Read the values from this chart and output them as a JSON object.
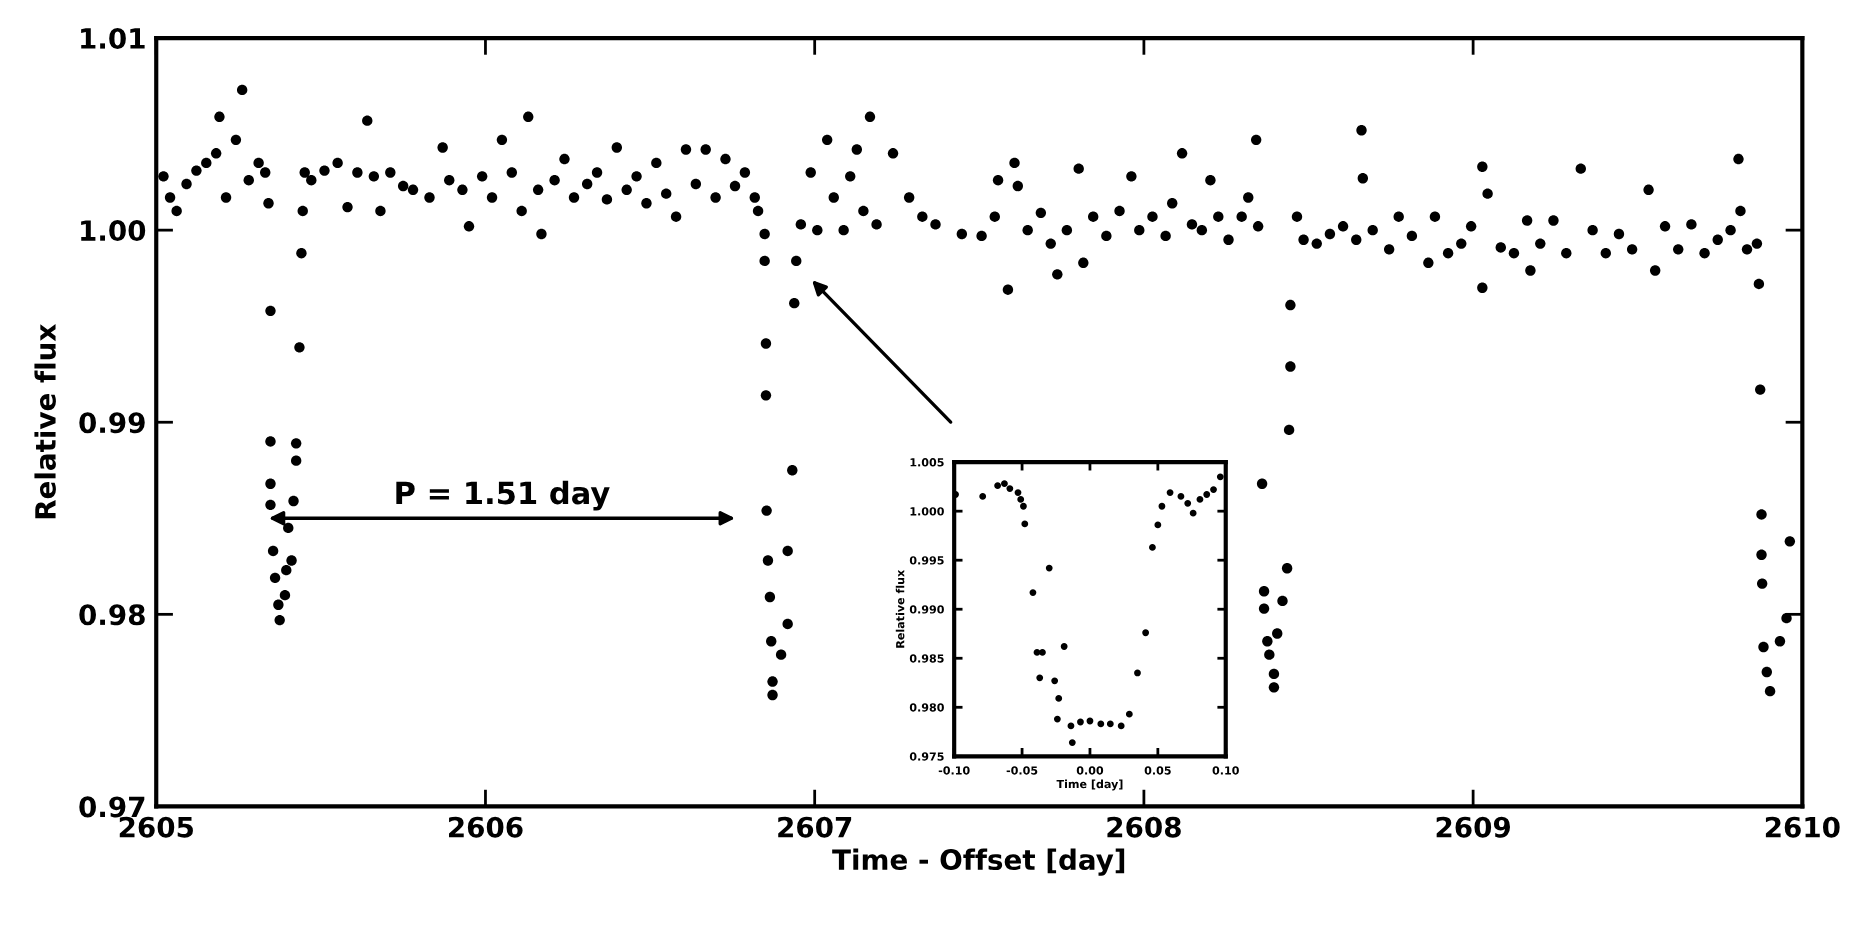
{
  "chart_data": [
    {
      "type": "scatter",
      "xlabel": "Time - Offset [day]",
      "ylabel": "Relative flux",
      "marker": "circle",
      "grid": false,
      "legend": false,
      "xlim": [
        2605,
        2610
      ],
      "ylim": [
        0.97,
        1.01
      ],
      "xticks": [
        2605,
        2606,
        2607,
        2608,
        2609,
        2610
      ],
      "yticks": [
        {
          "value": 0.97,
          "label": "0.97"
        },
        {
          "value": 0.98,
          "label": "0.98"
        },
        {
          "value": 0.99,
          "label": "0.99"
        },
        {
          "value": 1.0,
          "label": "1.00"
        },
        {
          "value": 1.01,
          "label": "1.01"
        }
      ],
      "annotations": [
        "P = 1.51 day"
      ],
      "series": [
        {
          "color": "#000000",
          "x": [
            2605.022,
            2605.042,
            2605.062,
            2605.092,
            2605.122,
            2605.152,
            2605.182,
            2605.192,
            2605.212,
            2605.242,
            2605.261,
            2605.281,
            2605.311,
            2605.331,
            2605.341,
            2605.347,
            2605.347,
            2605.347,
            2605.347,
            2605.355,
            2605.361,
            2605.371,
            2605.375,
            2605.391,
            2605.395,
            2605.411,
            2605.401,
            2605.417,
            2605.425,
            2605.425,
            2605.435,
            2605.441,
            2605.445,
            2605.451,
            2605.471,
            2605.511,
            2605.551,
            2605.581,
            2605.611,
            2605.641,
            2605.661,
            2605.681,
            2605.711,
            2605.75,
            2605.78,
            2605.83,
            2605.87,
            2605.89,
            2605.93,
            2605.95,
            2605.99,
            2606.02,
            2606.05,
            2606.08,
            2606.11,
            2606.13,
            2606.16,
            2606.17,
            2606.21,
            2606.24,
            2606.269,
            2606.309,
            2606.339,
            2606.369,
            2606.399,
            2606.429,
            2606.459,
            2606.489,
            2606.519,
            2606.549,
            2606.579,
            2606.609,
            2606.639,
            2606.669,
            2606.699,
            2606.729,
            2606.758,
            2606.788,
            2606.818,
            2606.828,
            2606.848,
            2606.848,
            2606.852,
            2606.852,
            2606.854,
            2606.858,
            2606.864,
            2606.868,
            2606.872,
            2606.872,
            2606.898,
            2606.918,
            2606.918,
            2606.932,
            2606.938,
            2606.944,
            2606.958,
            2606.988,
            2607.008,
            2607.038,
            2607.058,
            2607.088,
            2607.108,
            2607.128,
            2607.148,
            2607.168,
            2607.188,
            2607.238,
            2607.287,
            2607.327,
            2607.367,
            2607.447,
            2607.507,
            2607.547,
            2607.557,
            2607.587,
            2607.607,
            2607.617,
            2607.647,
            2607.687,
            2607.717,
            2607.737,
            2607.766,
            2607.802,
            2607.816,
            2607.846,
            2607.886,
            2607.926,
            2607.962,
            2607.986,
            2608.026,
            2608.066,
            2608.086,
            2608.116,
            2608.146,
            2608.176,
            2608.202,
            2608.226,
            2608.257,
            2608.297,
            2608.317,
            2608.341,
            2608.347,
            2608.359,
            2608.365,
            2608.365,
            2608.375,
            2608.381,
            2608.395,
            2608.395,
            2608.405,
            2608.421,
            2608.435,
            2608.441,
            2608.445,
            2608.445,
            2608.465,
            2608.485,
            2608.525,
            2608.565,
            2608.605,
            2608.645,
            2608.661,
            2608.665,
            2608.695,
            2608.745,
            2608.774,
            2608.814,
            2608.864,
            2608.884,
            2608.924,
            2608.964,
            2608.994,
            2609.028,
            2609.028,
            2609.044,
            2609.084,
            2609.124,
            2609.164,
            2609.174,
            2609.204,
            2609.244,
            2609.283,
            2609.327,
            2609.363,
            2609.403,
            2609.443,
            2609.483,
            2609.533,
            2609.553,
            2609.583,
            2609.623,
            2609.663,
            2609.703,
            2609.743,
            2609.782,
            2609.806,
            2609.812,
            2609.832,
            2609.862,
            2609.868,
            2609.872,
            2609.876,
            2609.876,
            2609.878,
            2609.882,
            2609.892,
            2609.902,
            2609.932,
            2609.952,
            2609.962
          ],
          "values": [
            1.0028,
            1.0017,
            1.001,
            1.0024,
            1.0031,
            1.0035,
            1.004,
            1.0059,
            1.0017,
            1.0047,
            1.0073,
            1.0026,
            1.0035,
            1.003,
            1.0014,
            0.9958,
            0.989,
            0.9868,
            0.9857,
            0.9833,
            0.9819,
            0.9805,
            0.9797,
            0.981,
            0.9823,
            0.9828,
            0.9845,
            0.9859,
            0.988,
            0.9889,
            0.9939,
            0.9988,
            1.001,
            1.003,
            1.0026,
            1.0031,
            1.0035,
            1.0012,
            1.003,
            1.0057,
            1.0028,
            1.001,
            1.003,
            1.0023,
            1.0021,
            1.0017,
            1.0043,
            1.0026,
            1.0021,
            1.0002,
            1.0028,
            1.0017,
            1.0047,
            1.003,
            1.001,
            1.0059,
            1.0021,
            0.9998,
            1.0026,
            1.0037,
            1.0017,
            1.0024,
            1.003,
            1.0016,
            1.0043,
            1.0021,
            1.0028,
            1.0014,
            1.0035,
            1.0019,
            1.0007,
            1.0042,
            1.0024,
            1.0042,
            1.0017,
            1.0037,
            1.0023,
            1.003,
            1.0017,
            1.001,
            0.9998,
            0.9984,
            0.9941,
            0.9914,
            0.9854,
            0.9828,
            0.9809,
            0.9786,
            0.9765,
            0.9758,
            0.9779,
            0.9795,
            0.9833,
            0.9875,
            0.9962,
            0.9984,
            1.0003,
            1.003,
            1.0,
            1.0047,
            1.0017,
            1.0,
            1.0028,
            1.0042,
            1.001,
            1.0059,
            1.0003,
            1.004,
            1.0017,
            1.0007,
            1.0003,
            0.9998,
            0.9997,
            1.0007,
            1.0026,
            0.9969,
            1.0035,
            1.0023,
            1.0,
            1.0009,
            0.9993,
            0.9977,
            1.0,
            1.0032,
            0.9983,
            1.0007,
            0.9997,
            1.001,
            1.0028,
            1.0,
            1.0007,
            0.9997,
            1.0014,
            1.004,
            1.0003,
            1.0,
            1.0026,
            1.0007,
            0.9995,
            1.0007,
            1.0017,
            1.0047,
            1.0002,
            0.9868,
            0.9812,
            0.9803,
            0.9786,
            0.9779,
            0.9769,
            0.9762,
            0.979,
            0.9807,
            0.9824,
            0.9896,
            0.9929,
            0.9961,
            1.0007,
            0.9995,
            0.9993,
            0.9998,
            1.0002,
            0.9995,
            1.0052,
            1.0027,
            1.0,
            0.999,
            1.0007,
            0.9997,
            0.9983,
            1.0007,
            0.9988,
            0.9993,
            1.0002,
            1.0033,
            0.997,
            1.0019,
            0.9991,
            0.9988,
            1.0005,
            0.9979,
            0.9993,
            1.0005,
            0.9988,
            1.0032,
            1.0,
            0.9988,
            0.9998,
            0.999,
            1.0021,
            0.9979,
            1.0002,
            0.999,
            1.0003,
            0.9988,
            0.9995,
            1.0,
            1.0037,
            1.001,
            0.999,
            0.9993,
            0.9972,
            0.9917,
            0.9852,
            0.9831,
            0.9816,
            0.9783,
            0.977,
            0.976,
            0.9786,
            0.9798,
            0.9838
          ]
        }
      ]
    },
    {
      "type": "scatter",
      "xlabel": "Time [day]",
      "ylabel": "Relative flux",
      "marker": "circle",
      "grid": false,
      "legend": false,
      "xlim": [
        -0.1,
        0.1
      ],
      "ylim": [
        0.975,
        1.005
      ],
      "xticks": [
        {
          "value": -0.1,
          "label": "-0.10"
        },
        {
          "value": -0.05,
          "label": "-0.05"
        },
        {
          "value": 0.0,
          "label": "0.00"
        },
        {
          "value": 0.05,
          "label": "0.05"
        },
        {
          "value": 0.1,
          "label": "0.10"
        }
      ],
      "yticks": [
        {
          "value": 0.975,
          "label": "0.975"
        },
        {
          "value": 0.98,
          "label": "0.980"
        },
        {
          "value": 0.985,
          "label": "0.985"
        },
        {
          "value": 0.99,
          "label": "0.990"
        },
        {
          "value": 0.995,
          "label": "0.995"
        },
        {
          "value": 1.0,
          "label": "1.000"
        },
        {
          "value": 1.005,
          "label": "1.005"
        }
      ],
      "series": [
        {
          "color": "#000000",
          "x": [
            -0.099,
            -0.079,
            -0.068,
            -0.063,
            -0.059,
            -0.053,
            -0.051,
            -0.049,
            -0.048,
            -0.03,
            -0.042,
            -0.039,
            -0.035,
            -0.019,
            -0.037,
            -0.026,
            -0.023,
            -0.024,
            -0.014,
            -0.013,
            -0.007,
            0.0,
            0.008,
            0.015,
            0.023,
            0.029,
            0.035,
            0.041,
            0.046,
            0.05,
            0.053,
            0.059,
            0.067,
            0.072,
            0.076,
            0.081,
            0.086,
            0.091,
            0.096
          ],
          "values": [
            1.0017,
            1.0015,
            1.0026,
            1.0028,
            1.0023,
            1.0019,
            1.0012,
            1.0005,
            0.9987,
            0.9942,
            0.9917,
            0.9856,
            0.9856,
            0.9862,
            0.983,
            0.9827,
            0.9809,
            0.9788,
            0.9781,
            0.9764,
            0.9785,
            0.9786,
            0.9783,
            0.9783,
            0.9781,
            0.9793,
            0.9835,
            0.9876,
            0.9963,
            0.9986,
            1.0005,
            1.0019,
            1.0015,
            1.0008,
            0.9998,
            1.0012,
            1.0017,
            1.0022,
            1.0035
          ]
        }
      ]
    }
  ]
}
